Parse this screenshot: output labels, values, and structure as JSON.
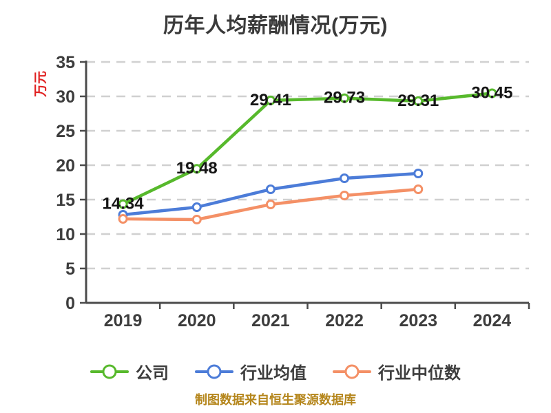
{
  "title": "历年人均薪酬情况(万元)",
  "y_axis_name": "万元",
  "footer": "制图数据来自恒生聚源数据库",
  "theme": {
    "background": "#ffffff",
    "title_color": "#3a3a3a",
    "axis_color": "#4b4b4b",
    "tick_label_color": "#3d3d3d",
    "grid_color": "#d0d0d0",
    "data_label_color": "#151515",
    "y_name_color": "#e02020",
    "footer_color": "#b5861c",
    "marker_fill": "#ffffff"
  },
  "chart_data": {
    "type": "line",
    "title": "历年人均薪酬情况(万元)",
    "categories": [
      "2019",
      "2020",
      "2021",
      "2022",
      "2023",
      "2024"
    ],
    "series": [
      {
        "id": "company",
        "name": "公司",
        "color": "#57b92c",
        "show_labels": true,
        "values": [
          14.34,
          19.48,
          29.41,
          29.73,
          29.31,
          30.45
        ]
      },
      {
        "id": "industry-mean",
        "name": "行业均值",
        "color": "#4c7cd8",
        "show_labels": false,
        "values": [
          12.8,
          13.9,
          16.5,
          18.1,
          18.8,
          null
        ]
      },
      {
        "id": "industry-median",
        "name": "行业中位数",
        "color": "#f49066",
        "show_labels": false,
        "values": [
          12.2,
          12.1,
          14.3,
          15.6,
          16.5,
          null
        ]
      }
    ],
    "ylabel": "万元",
    "ylim": [
      0,
      35
    ],
    "ytick_step": 5,
    "grid": "dashed-horizontal",
    "legend_position": "bottom"
  }
}
